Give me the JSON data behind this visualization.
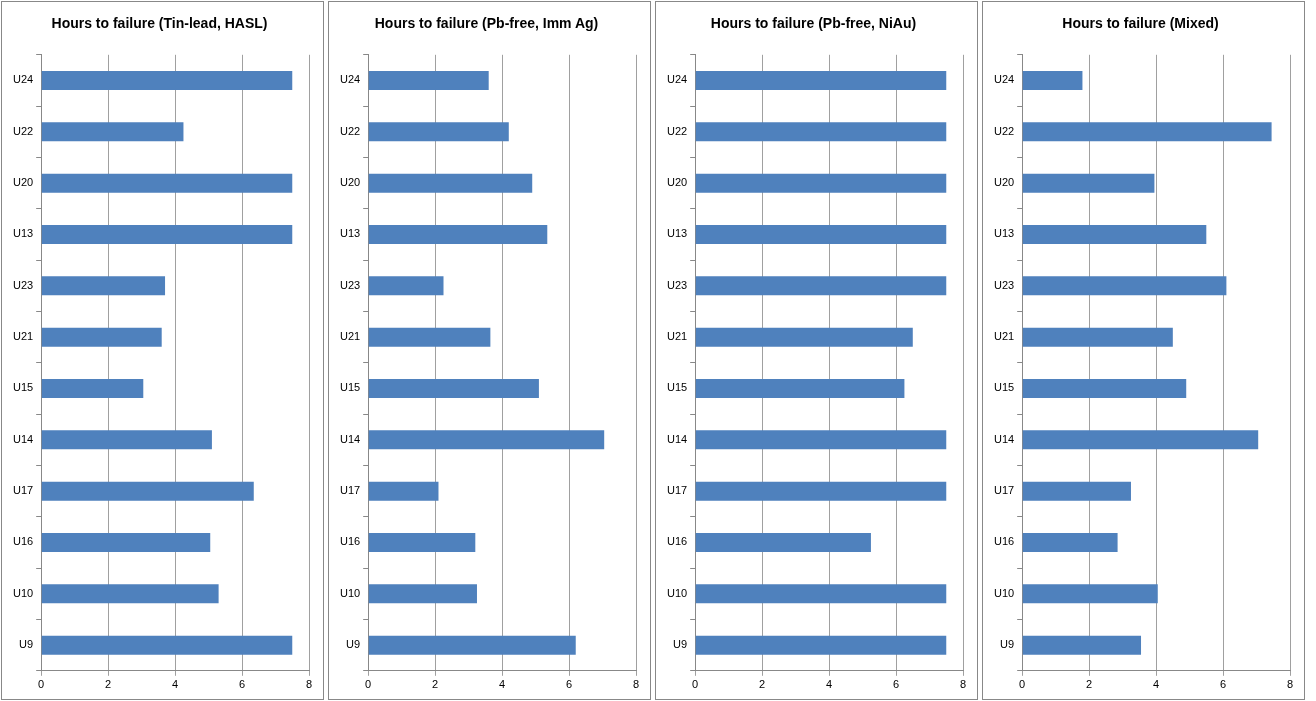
{
  "chart_data": [
    {
      "type": "bar",
      "orientation": "horizontal",
      "title": "Hours to failure (Tin-lead, HASL)",
      "categories": [
        "U24",
        "U22",
        "U20",
        "U13",
        "U23",
        "U21",
        "U15",
        "U14",
        "U17",
        "U16",
        "U10",
        "U9"
      ],
      "values": [
        7.5,
        4.25,
        7.5,
        7.5,
        3.7,
        3.6,
        3.05,
        5.1,
        6.35,
        5.05,
        5.3,
        7.5
      ],
      "color": "#4f81bd",
      "xlim": [
        0,
        8
      ],
      "xticks": [
        0,
        2,
        4,
        6,
        8
      ],
      "grid": "x",
      "legend": false
    },
    {
      "type": "bar",
      "orientation": "horizontal",
      "title": "Hours to failure (Pb-free, Imm Ag)",
      "categories": [
        "U24",
        "U22",
        "U20",
        "U13",
        "U23",
        "U21",
        "U15",
        "U14",
        "U17",
        "U16",
        "U10",
        "U9"
      ],
      "values": [
        3.6,
        4.2,
        4.9,
        5.35,
        2.25,
        3.65,
        5.1,
        7.05,
        2.1,
        3.2,
        3.25,
        6.2
      ],
      "color": "#4f81bd",
      "xlim": [
        0,
        8
      ],
      "xticks": [
        0,
        2,
        4,
        6,
        8
      ],
      "grid": "x",
      "legend": false
    },
    {
      "type": "bar",
      "orientation": "horizontal",
      "title": "Hours to failure (Pb-free, NiAu)",
      "categories": [
        "U24",
        "U22",
        "U20",
        "U13",
        "U23",
        "U21",
        "U15",
        "U14",
        "U17",
        "U16",
        "U10",
        "U9"
      ],
      "values": [
        7.5,
        7.5,
        7.5,
        7.5,
        7.5,
        6.5,
        6.25,
        7.5,
        7.5,
        5.25,
        7.5,
        7.5
      ],
      "color": "#4f81bd",
      "xlim": [
        0,
        8
      ],
      "xticks": [
        0,
        2,
        4,
        6,
        8
      ],
      "grid": "x",
      "legend": false
    },
    {
      "type": "bar",
      "orientation": "horizontal",
      "title": "Hours to failure (Mixed)",
      "categories": [
        "U24",
        "U22",
        "U20",
        "U13",
        "U23",
        "U21",
        "U15",
        "U14",
        "U17",
        "U16",
        "U10",
        "U9"
      ],
      "values": [
        1.8,
        7.45,
        3.95,
        5.5,
        6.1,
        4.5,
        4.9,
        7.05,
        3.25,
        2.85,
        4.05,
        3.55
      ],
      "color": "#4f81bd",
      "xlim": [
        0,
        8
      ],
      "xticks": [
        0,
        2,
        4,
        6,
        8
      ],
      "grid": "x",
      "legend": false
    }
  ]
}
